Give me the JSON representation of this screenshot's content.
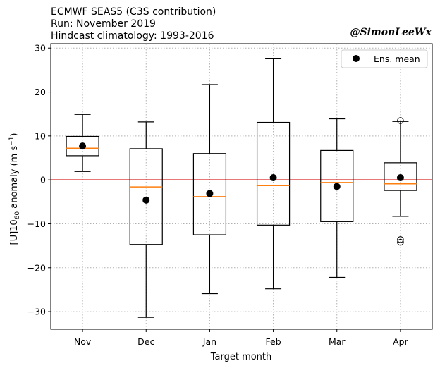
{
  "chart_data": {
    "type": "box",
    "title_lines": [
      "ECMWF SEAS5 (C3S contribution)",
      "Run: November 2019",
      "Hindcast climatology: 1993-2016"
    ],
    "credit": "@SimonLeeWx",
    "xlabel": "Target month",
    "ylabel_parts": {
      "pre": "[U]10",
      "sub": "60",
      "post": " anomaly (m s",
      "sup": "−1",
      "end": ")"
    },
    "ylim": [
      -34,
      31
    ],
    "yticks": [
      -30,
      -20,
      -10,
      0,
      10,
      20,
      30
    ],
    "ytick_labels": [
      "−30",
      "−20",
      "−10",
      "0",
      "10",
      "20",
      "30"
    ],
    "categories": [
      "Nov",
      "Dec",
      "Jan",
      "Feb",
      "Mar",
      "Apr"
    ],
    "boxes": [
      {
        "whisker_low": 1.9,
        "q1": 5.5,
        "median": 7.2,
        "q3": 9.9,
        "whisker_high": 14.9,
        "mean": 7.7,
        "outliers": []
      },
      {
        "whisker_low": -31.3,
        "q1": -14.7,
        "median": -1.6,
        "q3": 7.1,
        "whisker_high": 13.2,
        "mean": -4.6,
        "outliers": []
      },
      {
        "whisker_low": -25.9,
        "q1": -12.5,
        "median": -3.8,
        "q3": 6.0,
        "whisker_high": 21.7,
        "mean": -3.1,
        "outliers": []
      },
      {
        "whisker_low": -24.8,
        "q1": -10.3,
        "median": -1.3,
        "q3": 13.1,
        "whisker_high": 27.7,
        "mean": 0.5,
        "outliers": []
      },
      {
        "whisker_low": -22.2,
        "q1": -9.5,
        "median": -0.6,
        "q3": 6.7,
        "whisker_high": 13.9,
        "mean": -1.5,
        "outliers": []
      },
      {
        "whisker_low": -8.3,
        "q1": -2.4,
        "median": -0.9,
        "q3": 3.9,
        "whisker_high": 13.3,
        "mean": 0.5,
        "outliers": [
          13.5,
          -13.6,
          -14.2
        ]
      }
    ],
    "reference_line": 0,
    "legend": {
      "label": "Ens. mean",
      "position": "top-right"
    },
    "grid": true,
    "colors": {
      "median": "#ff7f0e",
      "reference": "#d62728",
      "box": "#000000",
      "grid": "#b0b0b0",
      "mean": "#000000"
    }
  }
}
